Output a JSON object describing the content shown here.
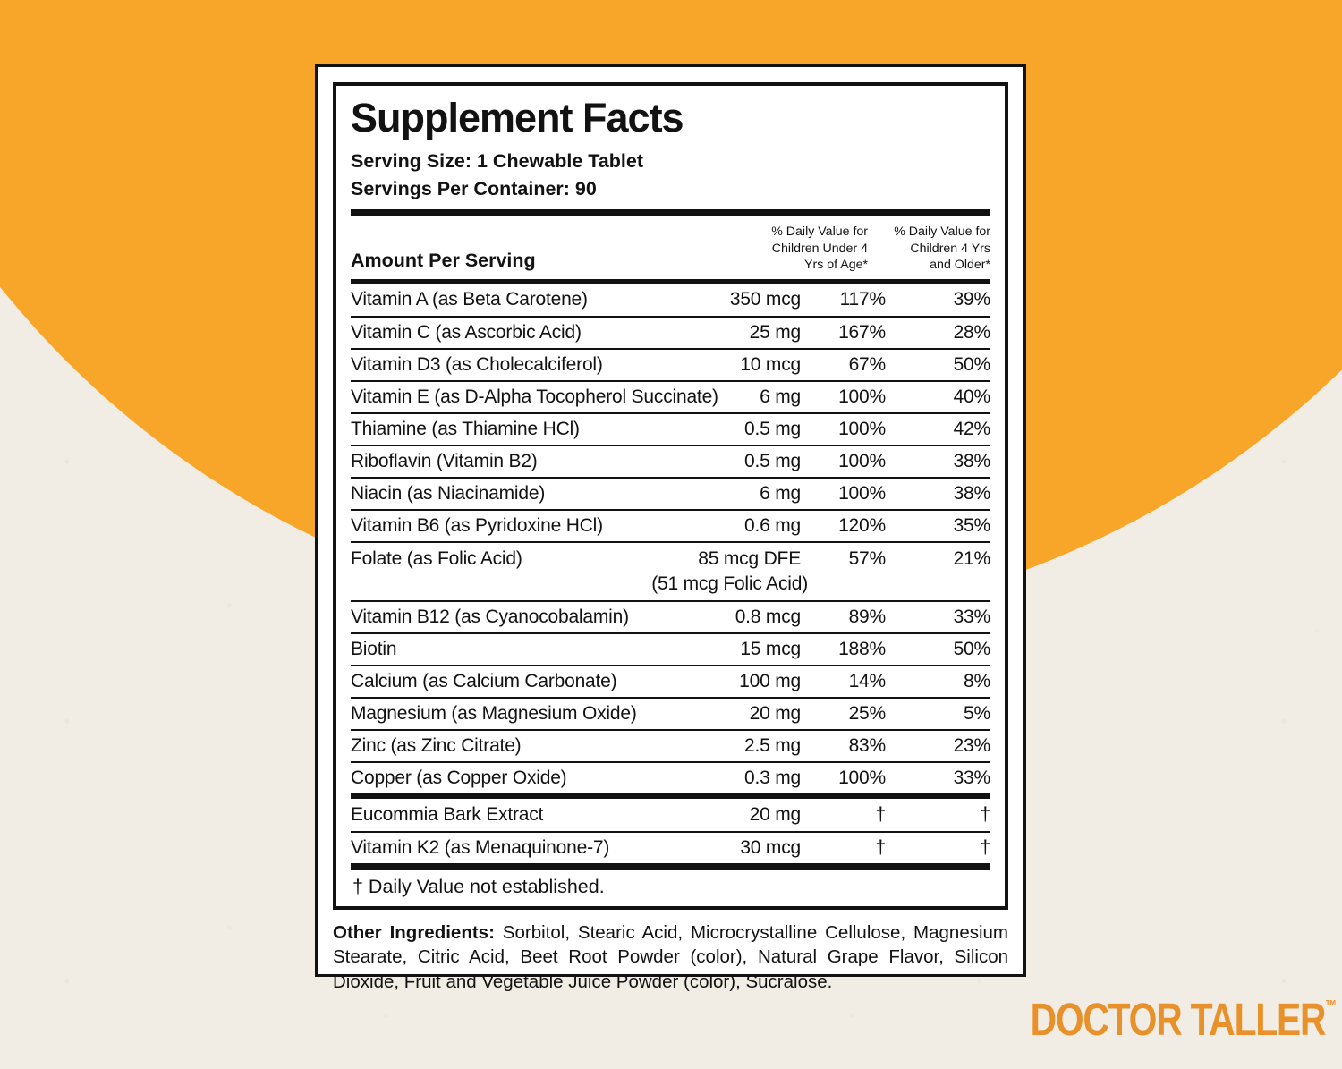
{
  "background": {
    "orange_hex": "#F7A62A",
    "cream_hex": "#F1EDE4"
  },
  "brand": {
    "logo_text": "DOCTOR TALLER",
    "trademark": "™",
    "logo_color_hex": "#E8912B"
  },
  "panel": {
    "title": "Supplement Facts",
    "serving_size": "Serving Size: 1 Chewable Tablet",
    "servings_per_container": "Servings Per Container: 90",
    "table": {
      "amount_header": "Amount Per Serving",
      "dv_header_under4": "% Daily Value for\nChildren Under 4\nYrs of Age*",
      "dv_header_4plus": "% Daily Value for\nChildren 4 Yrs\nand Older*",
      "rows": [
        {
          "name": "Vitamin A (as Beta Carotene)",
          "amount": "350 mcg",
          "dv_under4": "117%",
          "dv_4plus": "39%"
        },
        {
          "name": "Vitamin C (as Ascorbic Acid)",
          "amount": "25 mg",
          "dv_under4": "167%",
          "dv_4plus": "28%"
        },
        {
          "name": "Vitamin D3 (as Cholecalciferol)",
          "amount": "10 mcg",
          "dv_under4": "67%",
          "dv_4plus": "50%"
        },
        {
          "name": "Vitamin E (as D-Alpha Tocopherol Succinate)",
          "amount": "6 mg",
          "dv_under4": "100%",
          "dv_4plus": "40%"
        },
        {
          "name": "Thiamine (as Thiamine HCl)",
          "amount": "0.5 mg",
          "dv_under4": "100%",
          "dv_4plus": "42%"
        },
        {
          "name": "Riboflavin (Vitamin B2)",
          "amount": "0.5 mg",
          "dv_under4": "100%",
          "dv_4plus": "38%"
        },
        {
          "name": "Niacin (as Niacinamide)",
          "amount": "6 mg",
          "dv_under4": "100%",
          "dv_4plus": "38%"
        },
        {
          "name": "Vitamin B6 (as Pyridoxine HCl)",
          "amount": "0.6 mg",
          "dv_under4": "120%",
          "dv_4plus": "35%"
        },
        {
          "name": "Folate (as Folic Acid)",
          "amount": "85 mcg DFE",
          "note": "(51 mcg Folic Acid)",
          "dv_under4": "57%",
          "dv_4plus": "21%"
        },
        {
          "name": "Vitamin B12 (as Cyanocobalamin)",
          "amount": "0.8 mcg",
          "dv_under4": "89%",
          "dv_4plus": "33%"
        },
        {
          "name": "Biotin",
          "amount": "15 mcg",
          "dv_under4": "188%",
          "dv_4plus": "50%"
        },
        {
          "name": "Calcium (as Calcium Carbonate)",
          "amount": "100 mg",
          "dv_under4": "14%",
          "dv_4plus": "8%"
        },
        {
          "name": "Magnesium (as Magnesium Oxide)",
          "amount": "20 mg",
          "dv_under4": "25%",
          "dv_4plus": "5%"
        },
        {
          "name": "Zinc (as Zinc Citrate)",
          "amount": "2.5 mg",
          "dv_under4": "83%",
          "dv_4plus": "23%"
        },
        {
          "name": "Copper (as Copper Oxide)",
          "amount": "0.3 mg",
          "dv_under4": "100%",
          "dv_4plus": "33%"
        },
        {
          "name": "Eucommia Bark Extract",
          "amount": "20 mg",
          "dv_under4": "†",
          "dv_4plus": "†"
        },
        {
          "name": "Vitamin K2 (as Menaquinone-7)",
          "amount": "30 mcg",
          "dv_under4": "†",
          "dv_4plus": "†"
        }
      ],
      "footnote": "† Daily Value not established."
    },
    "other_ingredients": {
      "label": "Other Ingredients:",
      "text": " Sorbitol, Stearic Acid, Microcrystalline Cellulose, Magnesium Stearate, Citric Acid, Beet Root Powder (color), Natural Grape Flavor, Silicon Dioxide, Fruit and Vegetable Juice Powder (color), Sucralose."
    }
  }
}
